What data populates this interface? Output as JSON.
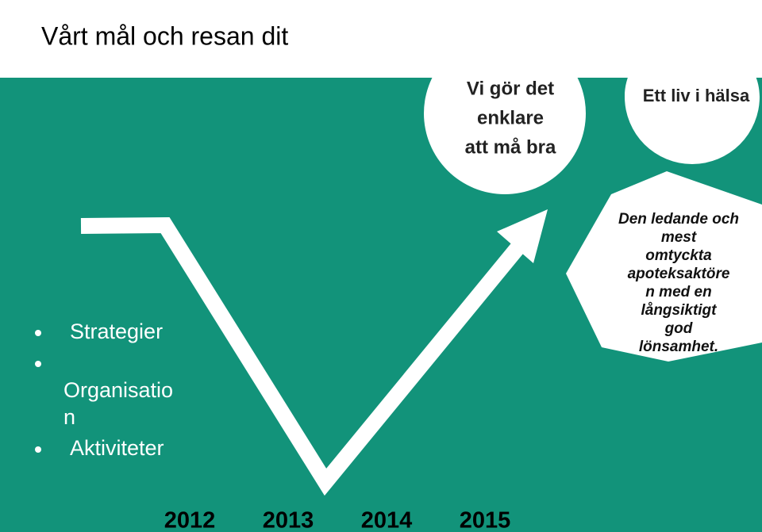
{
  "title": "Vårt mål och resan dit",
  "bullets": [
    [
      "Strategier"
    ],
    [
      "Organisatio",
      "n"
    ],
    [
      "Aktiviteter"
    ]
  ],
  "circle_1": [
    "Vi gör det",
    "enklare",
    "att må bra"
  ],
  "circle_2": [
    "Ett liv i hälsa"
  ],
  "goal": [
    "Den ledande och",
    "mest",
    "omtyckta",
    "apoteksaktöre",
    "n med en",
    "långsiktigt",
    "god",
    "lönsamhet."
  ],
  "years": [
    "2012",
    "2013",
    "2014",
    "2015"
  ]
}
